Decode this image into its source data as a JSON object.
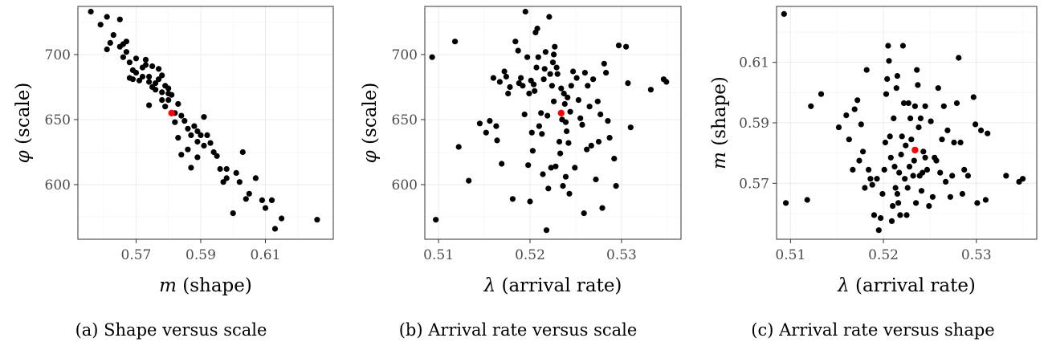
{
  "figure": {
    "point_color": "#000000",
    "highlight_color": "#ff0000"
  },
  "chart_data": [
    {
      "type": "scatter",
      "caption": "(a) Shape versus scale",
      "xlabel_symbol": "m",
      "xlabel_text": " (shape)",
      "ylabel_symbol": "φ",
      "ylabel_text": " (scale)",
      "xlim": [
        0.552,
        0.631
      ],
      "ylim": [
        558,
        737
      ],
      "xticks": [
        0.57,
        0.59,
        0.61
      ],
      "xtick_labels": [
        "0.57",
        "0.59",
        "0.61"
      ],
      "yticks": [
        600,
        650,
        700
      ],
      "ytick_labels": [
        "600",
        "650",
        "700"
      ],
      "highlight": [
        0.581,
        655
      ],
      "points": [
        [
          0.556,
          733
        ],
        [
          0.559,
          723
        ],
        [
          0.561,
          729
        ],
        [
          0.562,
          709
        ],
        [
          0.563,
          715
        ],
        [
          0.561,
          704
        ],
        [
          0.565,
          727
        ],
        [
          0.565,
          706
        ],
        [
          0.566,
          698
        ],
        [
          0.566,
          708
        ],
        [
          0.567,
          702
        ],
        [
          0.567,
          710
        ],
        [
          0.568,
          694
        ],
        [
          0.569,
          688
        ],
        [
          0.57,
          697
        ],
        [
          0.568,
          682
        ],
        [
          0.569,
          681
        ],
        [
          0.571,
          680
        ],
        [
          0.57,
          686
        ],
        [
          0.572,
          690
        ],
        [
          0.573,
          696
        ],
        [
          0.572,
          683
        ],
        [
          0.573,
          692
        ],
        [
          0.574,
          679
        ],
        [
          0.575,
          691
        ],
        [
          0.574,
          683
        ],
        [
          0.575,
          675
        ],
        [
          0.576,
          678
        ],
        [
          0.576,
          673
        ],
        [
          0.577,
          681
        ],
        [
          0.577,
          689
        ],
        [
          0.578,
          684
        ],
        [
          0.579,
          676
        ],
        [
          0.58,
          670
        ],
        [
          0.58,
          665
        ],
        [
          0.578,
          665
        ],
        [
          0.578,
          671
        ],
        [
          0.579,
          660
        ],
        [
          0.581,
          669
        ],
        [
          0.581,
          655
        ],
        [
          0.582,
          655
        ],
        [
          0.583,
          662
        ],
        [
          0.582,
          648
        ],
        [
          0.584,
          653
        ],
        [
          0.585,
          649
        ],
        [
          0.586,
          643
        ],
        [
          0.587,
          638
        ],
        [
          0.588,
          645
        ],
        [
          0.589,
          641
        ],
        [
          0.59,
          638
        ],
        [
          0.591,
          652
        ],
        [
          0.591,
          630
        ],
        [
          0.589,
          633
        ],
        [
          0.586,
          627
        ],
        [
          0.587,
          613
        ],
        [
          0.589,
          621
        ],
        [
          0.592,
          638
        ],
        [
          0.593,
          632
        ],
        [
          0.594,
          625
        ],
        [
          0.595,
          622
        ],
        [
          0.596,
          612
        ],
        [
          0.597,
          602
        ],
        [
          0.598,
          612
        ],
        [
          0.598,
          605
        ],
        [
          0.6,
          578
        ],
        [
          0.601,
          609
        ],
        [
          0.602,
          602
        ],
        [
          0.603,
          625
        ],
        [
          0.604,
          589
        ],
        [
          0.605,
          593
        ],
        [
          0.607,
          605
        ],
        [
          0.609,
          588
        ],
        [
          0.61,
          582
        ],
        [
          0.612,
          588
        ],
        [
          0.613,
          566
        ],
        [
          0.615,
          574
        ],
        [
          0.626,
          573
        ],
        [
          0.583,
          636
        ],
        [
          0.58,
          674
        ],
        [
          0.574,
          661
        ],
        [
          0.584,
          623
        ]
      ]
    },
    {
      "type": "scatter",
      "caption": "(b) Arrival rate versus scale",
      "xlabel_symbol": "λ",
      "xlabel_text": " (arrival rate)",
      "ylabel_symbol": "φ",
      "ylabel_text": " (scale)",
      "xlim": [
        0.5085,
        0.5365
      ],
      "ylim": [
        558,
        737
      ],
      "xticks": [
        0.51,
        0.52,
        0.53
      ],
      "xtick_labels": [
        "0.51",
        "0.52",
        "0.53"
      ],
      "yticks": [
        600,
        650,
        700
      ],
      "ytick_labels": [
        "600",
        "650",
        "700"
      ],
      "highlight": [
        0.5234,
        655
      ],
      "points": [
        [
          0.5093,
          698
        ],
        [
          0.5097,
          573
        ],
        [
          0.5118,
          710
        ],
        [
          0.5122,
          629
        ],
        [
          0.5133,
          603
        ],
        [
          0.5145,
          647
        ],
        [
          0.5152,
          640
        ],
        [
          0.5156,
          649
        ],
        [
          0.516,
          682
        ],
        [
          0.5163,
          645
        ],
        [
          0.5164,
          634
        ],
        [
          0.5167,
          679
        ],
        [
          0.5169,
          616
        ],
        [
          0.5172,
          687
        ],
        [
          0.5174,
          683
        ],
        [
          0.5176,
          670
        ],
        [
          0.5178,
          675
        ],
        [
          0.5181,
          589
        ],
        [
          0.5184,
          710
        ],
        [
          0.5187,
          703
        ],
        [
          0.5188,
          678
        ],
        [
          0.519,
          682
        ],
        [
          0.5192,
          676
        ],
        [
          0.5194,
          654
        ],
        [
          0.5195,
          733
        ],
        [
          0.5197,
          698
        ],
        [
          0.5198,
          615
        ],
        [
          0.5199,
          670
        ],
        [
          0.52,
          587
        ],
        [
          0.5201,
          680
        ],
        [
          0.5202,
          640
        ],
        [
          0.5203,
          626
        ],
        [
          0.5204,
          677
        ],
        [
          0.5205,
          672
        ],
        [
          0.5206,
          717
        ],
        [
          0.5207,
          690
        ],
        [
          0.5208,
          720
        ],
        [
          0.5209,
          698
        ],
        [
          0.521,
          645
        ],
        [
          0.5212,
          655
        ],
        [
          0.5213,
          639
        ],
        [
          0.5214,
          608
        ],
        [
          0.5215,
          681
        ],
        [
          0.5216,
          689
        ],
        [
          0.5217,
          702
        ],
        [
          0.5218,
          565
        ],
        [
          0.5219,
          653
        ],
        [
          0.522,
          597
        ],
        [
          0.5221,
          729
        ],
        [
          0.5222,
          685
        ],
        [
          0.5223,
          613
        ],
        [
          0.5224,
          676
        ],
        [
          0.5225,
          694
        ],
        [
          0.5226,
          664
        ],
        [
          0.5227,
          706
        ],
        [
          0.5228,
          614
        ],
        [
          0.5229,
          690
        ],
        [
          0.523,
          685
        ],
        [
          0.5232,
          633
        ],
        [
          0.5233,
          624
        ],
        [
          0.5234,
          674
        ],
        [
          0.5235,
          650
        ],
        [
          0.5236,
          599
        ],
        [
          0.5237,
          670
        ],
        [
          0.5238,
          662
        ],
        [
          0.5239,
          606
        ],
        [
          0.524,
          641
        ],
        [
          0.5241,
          667
        ],
        [
          0.5242,
          632
        ],
        [
          0.5243,
          593
        ],
        [
          0.5244,
          656
        ],
        [
          0.5245,
          676
        ],
        [
          0.5247,
          687
        ],
        [
          0.5249,
          613
        ],
        [
          0.5251,
          682
        ],
        [
          0.5253,
          665
        ],
        [
          0.5255,
          651
        ],
        [
          0.5257,
          646
        ],
        [
          0.5259,
          578
        ],
        [
          0.526,
          686
        ],
        [
          0.5262,
          627
        ],
        [
          0.5263,
          676
        ],
        [
          0.5265,
          660
        ],
        [
          0.5267,
          630
        ],
        [
          0.5269,
          681
        ],
        [
          0.5272,
          604
        ],
        [
          0.5274,
          664
        ],
        [
          0.5275,
          633
        ],
        [
          0.5277,
          654
        ],
        [
          0.5279,
          582
        ],
        [
          0.5281,
          693
        ],
        [
          0.5283,
          686
        ],
        [
          0.5285,
          649
        ],
        [
          0.5287,
          636
        ],
        [
          0.5292,
          620
        ],
        [
          0.5294,
          599
        ],
        [
          0.5297,
          707
        ],
        [
          0.5305,
          706
        ],
        [
          0.5307,
          678
        ],
        [
          0.531,
          644
        ],
        [
          0.5332,
          673
        ],
        [
          0.5346,
          681
        ],
        [
          0.5349,
          679
        ],
        [
          0.5226,
          700
        ],
        [
          0.5239,
          648
        ]
      ]
    },
    {
      "type": "scatter",
      "caption": "(c) Arrival rate versus shape",
      "xlabel_symbol": "λ",
      "xlabel_text": " (arrival rate)",
      "ylabel_symbol": "m",
      "ylabel_text": " (shape)",
      "xlim": [
        0.5085,
        0.5365
      ],
      "ylim": [
        0.5515,
        0.6285
      ],
      "xticks": [
        0.51,
        0.52,
        0.53
      ],
      "xtick_labels": [
        "0.51",
        "0.52",
        "0.53"
      ],
      "yticks": [
        0.57,
        0.59,
        0.61
      ],
      "ytick_labels": [
        "0.57",
        "0.59",
        "0.61"
      ],
      "highlight": [
        0.5234,
        0.581
      ],
      "points": [
        [
          0.5093,
          0.626
        ],
        [
          0.5095,
          0.5635
        ],
        [
          0.5118,
          0.5645
        ],
        [
          0.5122,
          0.5955
        ],
        [
          0.5133,
          0.5995
        ],
        [
          0.5152,
          0.5885
        ],
        [
          0.516,
          0.5925
        ],
        [
          0.5163,
          0.5845
        ],
        [
          0.5167,
          0.5745
        ],
        [
          0.5169,
          0.5945
        ],
        [
          0.5172,
          0.5975
        ],
        [
          0.5174,
          0.5775
        ],
        [
          0.5176,
          0.5895
        ],
        [
          0.5178,
          0.5805
        ],
        [
          0.518,
          0.5685
        ],
        [
          0.5182,
          0.6075
        ],
        [
          0.5184,
          0.5745
        ],
        [
          0.5186,
          0.5715
        ],
        [
          0.5188,
          0.5695
        ],
        [
          0.519,
          0.5595
        ],
        [
          0.5193,
          0.5715
        ],
        [
          0.5195,
          0.5545
        ],
        [
          0.5197,
          0.5585
        ],
        [
          0.5199,
          0.5665
        ],
        [
          0.5201,
          0.5745
        ],
        [
          0.5202,
          0.5835
        ],
        [
          0.5203,
          0.5995
        ],
        [
          0.5204,
          0.6045
        ],
        [
          0.5205,
          0.6155
        ],
        [
          0.5206,
          0.6105
        ],
        [
          0.5207,
          0.5855
        ],
        [
          0.5208,
          0.5785
        ],
        [
          0.5209,
          0.5575
        ],
        [
          0.521,
          0.5625
        ],
        [
          0.5211,
          0.5915
        ],
        [
          0.5212,
          0.5755
        ],
        [
          0.5213,
          0.5685
        ],
        [
          0.5214,
          0.6015
        ],
        [
          0.5215,
          0.6055
        ],
        [
          0.5216,
          0.5635
        ],
        [
          0.5217,
          0.5735
        ],
        [
          0.5218,
          0.5595
        ],
        [
          0.5219,
          0.5795
        ],
        [
          0.522,
          0.5855
        ],
        [
          0.5221,
          0.6155
        ],
        [
          0.5222,
          0.5965
        ],
        [
          0.5223,
          0.5715
        ],
        [
          0.5224,
          0.5825
        ],
        [
          0.5225,
          0.5595
        ],
        [
          0.5226,
          0.5685
        ],
        [
          0.5227,
          0.5965
        ],
        [
          0.5228,
          0.5755
        ],
        [
          0.5229,
          0.5915
        ],
        [
          0.523,
          0.5845
        ],
        [
          0.5232,
          0.5725
        ],
        [
          0.5233,
          0.5775
        ],
        [
          0.5234,
          0.5955
        ],
        [
          0.5235,
          0.5635
        ],
        [
          0.5236,
          0.6075
        ],
        [
          0.5237,
          0.6025
        ],
        [
          0.5238,
          0.5885
        ],
        [
          0.5239,
          0.5725
        ],
        [
          0.524,
          0.5915
        ],
        [
          0.5241,
          0.5675
        ],
        [
          0.5242,
          0.5735
        ],
        [
          0.5243,
          0.5805
        ],
        [
          0.5245,
          0.5955
        ],
        [
          0.5247,
          0.5745
        ],
        [
          0.5249,
          0.5625
        ],
        [
          0.5251,
          0.5905
        ],
        [
          0.5253,
          0.5655
        ],
        [
          0.5255,
          0.5785
        ],
        [
          0.5257,
          0.5775
        ],
        [
          0.5259,
          0.6015
        ],
        [
          0.5261,
          0.5735
        ],
        [
          0.5263,
          0.5845
        ],
        [
          0.5265,
          0.5955
        ],
        [
          0.5267,
          0.5705
        ],
        [
          0.5269,
          0.5875
        ],
        [
          0.5272,
          0.5655
        ],
        [
          0.5274,
          0.5725
        ],
        [
          0.5276,
          0.5835
        ],
        [
          0.5279,
          0.5965
        ],
        [
          0.5281,
          0.6115
        ],
        [
          0.5283,
          0.5835
        ],
        [
          0.5285,
          0.5665
        ],
        [
          0.5287,
          0.5745
        ],
        [
          0.5291,
          0.5725
        ],
        [
          0.5297,
          0.5985
        ],
        [
          0.5299,
          0.5895
        ],
        [
          0.5301,
          0.5635
        ],
        [
          0.5305,
          0.5875
        ],
        [
          0.531,
          0.5645
        ],
        [
          0.5312,
          0.5865
        ],
        [
          0.5332,
          0.5725
        ],
        [
          0.5346,
          0.5705
        ],
        [
          0.535,
          0.5715
        ],
        [
          0.5215,
          0.5665
        ],
        [
          0.5245,
          0.5785
        ]
      ]
    }
  ]
}
